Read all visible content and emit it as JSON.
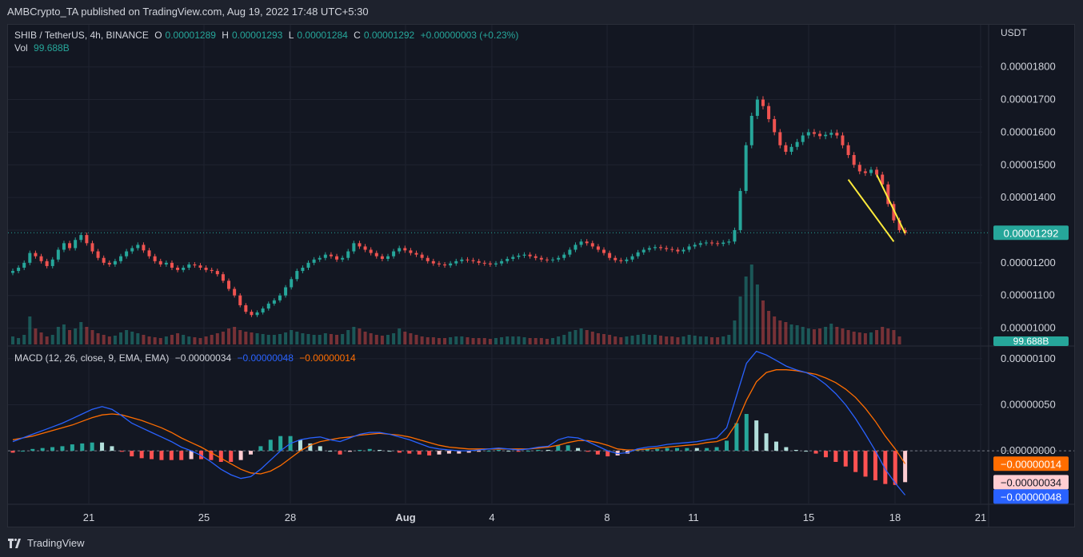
{
  "header": {
    "published_text": "AMBCrypto_TA published on TradingView.com, Aug 19, 2022 17:48 UTC+5:30"
  },
  "legend": {
    "symbol": "SHIB / TetherUS, 4h, BINANCE",
    "o_label": "O",
    "o_value": "0.00001289",
    "h_label": "H",
    "h_value": "0.00001293",
    "l_label": "L",
    "l_value": "0.00001284",
    "c_label": "C",
    "c_value": "0.00001292",
    "change": "+0.00000003 (+0.23%)",
    "vol_label": "Vol",
    "vol_value": "99.688B"
  },
  "macd_legend": {
    "title": "MACD (12, 26, close, 9, EMA, EMA)",
    "hist_value": "−0.00000034",
    "macd_value": "−0.00000048",
    "signal_value": "−0.00000014"
  },
  "brand": {
    "name": "TradingView"
  },
  "colors": {
    "up": "#26a69a",
    "down": "#ef5350",
    "macd_line": "#2962ff",
    "signal_line": "#ff6d00",
    "hist_pos_strong": "#26a69a",
    "hist_pos_weak": "#b2dfdb",
    "hist_neg_strong": "#ff5252",
    "hist_neg_weak": "#ffcdd2",
    "trend_lines": "#ffeb3b",
    "background": "#131722",
    "grid": "#1f2330"
  },
  "chart_data": [
    {
      "type": "candlestick",
      "title": "SHIB / TetherUS, 4h, BINANCE",
      "y_axis_unit": "USDT",
      "y_ticks": [
        "0.00001800",
        "0.00001700",
        "0.00001600",
        "0.00001500",
        "0.00001400",
        "0.00001300",
        "0.00001200",
        "0.00001100",
        "0.00001000"
      ],
      "x_ticks": [
        "21",
        "25",
        "28",
        "Aug",
        "4",
        "8",
        "11",
        "15",
        "18",
        "21"
      ],
      "last_price_label": "0.00001292",
      "volume_label": "99.688B",
      "ylim": [
        9.5e-06,
        1.88e-05
      ],
      "close_prices": [
        1.175e-05,
        1.185e-05,
        1.2e-05,
        1.23e-05,
        1.22e-05,
        1.205e-05,
        1.19e-05,
        1.21e-05,
        1.24e-05,
        1.26e-05,
        1.245e-05,
        1.27e-05,
        1.285e-05,
        1.26e-05,
        1.235e-05,
        1.215e-05,
        1.2e-05,
        1.195e-05,
        1.205e-05,
        1.22e-05,
        1.235e-05,
        1.245e-05,
        1.255e-05,
        1.238e-05,
        1.22e-05,
        1.205e-05,
        1.195e-05,
        1.2e-05,
        1.185e-05,
        1.178e-05,
        1.185e-05,
        1.195e-05,
        1.192e-05,
        1.185e-05,
        1.178e-05,
        1.175e-05,
        1.165e-05,
        1.145e-05,
        1.12e-05,
        1.1e-05,
        1.07e-05,
        1.05e-05,
        1.04e-05,
        1.048e-05,
        1.06e-05,
        1.075e-05,
        1.085e-05,
        1.1e-05,
        1.125e-05,
        1.15e-05,
        1.175e-05,
        1.185e-05,
        1.2e-05,
        1.21e-05,
        1.215e-05,
        1.225e-05,
        1.22e-05,
        1.21e-05,
        1.215e-05,
        1.235e-05,
        1.26e-05,
        1.25e-05,
        1.24e-05,
        1.23e-05,
        1.22e-05,
        1.212e-05,
        1.22e-05,
        1.235e-05,
        1.245e-05,
        1.238e-05,
        1.23e-05,
        1.225e-05,
        1.215e-05,
        1.205e-05,
        1.198e-05,
        1.195e-05,
        1.192e-05,
        1.198e-05,
        1.205e-05,
        1.21e-05,
        1.208e-05,
        1.205e-05,
        1.2e-05,
        1.198e-05,
        1.195e-05,
        1.198e-05,
        1.205e-05,
        1.212e-05,
        1.218e-05,
        1.222e-05,
        1.225e-05,
        1.22e-05,
        1.215e-05,
        1.21e-05,
        1.208e-05,
        1.21e-05,
        1.215e-05,
        1.225e-05,
        1.24e-05,
        1.255e-05,
        1.265e-05,
        1.26e-05,
        1.25e-05,
        1.24e-05,
        1.23e-05,
        1.215e-05,
        1.208e-05,
        1.205e-05,
        1.21e-05,
        1.22e-05,
        1.232e-05,
        1.24e-05,
        1.245e-05,
        1.248e-05,
        1.245e-05,
        1.242e-05,
        1.24e-05,
        1.235e-05,
        1.24e-05,
        1.25e-05,
        1.255e-05,
        1.26e-05,
        1.262e-05,
        1.26e-05,
        1.258e-05,
        1.262e-05,
        1.265e-05,
        1.3e-05,
        1.42e-05,
        1.56e-05,
        1.65e-05,
        1.7e-05,
        1.68e-05,
        1.64e-05,
        1.6e-05,
        1.56e-05,
        1.54e-05,
        1.555e-05,
        1.57e-05,
        1.59e-05,
        1.6e-05,
        1.595e-05,
        1.588e-05,
        1.592e-05,
        1.598e-05,
        1.59e-05,
        1.56e-05,
        1.53e-05,
        1.5e-05,
        1.48e-05,
        1.475e-05,
        1.485e-05,
        1.47e-05,
        1.44e-05,
        1.38e-05,
        1.33e-05,
        1.3e-05,
        1.292e-05
      ],
      "volume_relative": [
        0.1,
        0.08,
        0.12,
        0.35,
        0.2,
        0.15,
        0.1,
        0.12,
        0.22,
        0.25,
        0.18,
        0.2,
        0.28,
        0.22,
        0.18,
        0.14,
        0.12,
        0.1,
        0.11,
        0.15,
        0.18,
        0.16,
        0.14,
        0.12,
        0.1,
        0.09,
        0.08,
        0.1,
        0.12,
        0.14,
        0.12,
        0.1,
        0.09,
        0.08,
        0.1,
        0.12,
        0.14,
        0.16,
        0.2,
        0.22,
        0.18,
        0.16,
        0.15,
        0.14,
        0.13,
        0.12,
        0.12,
        0.13,
        0.15,
        0.18,
        0.16,
        0.14,
        0.13,
        0.12,
        0.12,
        0.14,
        0.13,
        0.12,
        0.13,
        0.18,
        0.22,
        0.2,
        0.16,
        0.14,
        0.12,
        0.11,
        0.12,
        0.14,
        0.2,
        0.16,
        0.14,
        0.12,
        0.1,
        0.09,
        0.09,
        0.08,
        0.08,
        0.09,
        0.1,
        0.1,
        0.09,
        0.08,
        0.08,
        0.08,
        0.07,
        0.08,
        0.09,
        0.1,
        0.1,
        0.1,
        0.09,
        0.08,
        0.08,
        0.08,
        0.07,
        0.08,
        0.1,
        0.12,
        0.16,
        0.18,
        0.2,
        0.18,
        0.16,
        0.14,
        0.13,
        0.12,
        0.1,
        0.09,
        0.1,
        0.11,
        0.12,
        0.13,
        0.12,
        0.12,
        0.11,
        0.1,
        0.1,
        0.09,
        0.1,
        0.12,
        0.11,
        0.1,
        0.1,
        0.09,
        0.09,
        0.1,
        0.12,
        0.3,
        0.6,
        0.85,
        1.0,
        0.75,
        0.55,
        0.42,
        0.35,
        0.3,
        0.28,
        0.25,
        0.24,
        0.22,
        0.2,
        0.19,
        0.2,
        0.22,
        0.26,
        0.22,
        0.2,
        0.18,
        0.16,
        0.15,
        0.14,
        0.15,
        0.18,
        0.22,
        0.2,
        0.18,
        0.1
      ]
    },
    {
      "type": "line",
      "title": "MACD (12, 26, close, 9, EMA, EMA)",
      "y_ticks": [
        "0.00000100",
        "0.00000050",
        "0.00000000"
      ],
      "ylim": [
        -5.8e-07,
        1.12e-06
      ],
      "value_labels": [
        "−0.00000014",
        "−0.00000034",
        "−0.00000048"
      ],
      "series": [
        {
          "values": [
            1e-07,
            1.4e-07,
            1.8e-07,
            2.2e-07,
            2.6e-07,
            3e-07,
            3.5e-07,
            4e-07,
            4.5e-07,
            4.8e-07,
            4.5e-07,
            3.8e-07,
            3e-07,
            2.5e-07,
            2e-07,
            1.5e-07,
            1e-07,
            4e-08,
            0.0,
            -5e-08,
            -1.2e-07,
            -2e-07,
            -2.6e-07,
            -3e-07,
            -2.8e-07,
            -2e-07,
            -1e-07,
            0.0,
            8e-08,
            1.2e-07,
            1.4e-07,
            1.5e-07,
            1.2e-07,
            1e-07,
            1.4e-07,
            1.8e-07,
            2e-07,
            2e-07,
            1.8e-07,
            1.5e-07,
            1.2e-07,
            8e-08,
            4e-08,
            2e-08,
            1e-08,
            0.0,
            0.0,
            1e-08,
            2e-08,
            3e-08,
            2e-08,
            1e-08,
            2e-08,
            4e-08,
            5e-08,
            1.2e-07,
            1.5e-07,
            1.4e-07,
            1e-07,
            5e-08,
            0.0,
            -3e-08,
            -2e-08,
            2e-08,
            4e-08,
            5e-08,
            7e-08,
            8e-08,
            9e-08,
            1e-07,
            1.2e-07,
            1.4e-07,
            2.5e-07,
            6e-07,
            9.5e-07,
            1.08e-06,
            1.04e-06,
            9.8e-07,
            9.2e-07,
            8.8e-07,
            8.5e-07,
            8e-07,
            7.2e-07,
            6.2e-07,
            5e-07,
            3.5e-07,
            1.8e-07,
            0.0,
            -2e-07,
            -3.5e-07,
            -4.8e-07
          ]
        },
        {
          "values": [
            1.2e-07,
            1.4e-07,
            1.6e-07,
            1.9e-07,
            2.2e-07,
            2.5e-07,
            2.8e-07,
            3.2e-07,
            3.6e-07,
            3.9e-07,
            4e-07,
            3.9e-07,
            3.6e-07,
            3.3e-07,
            2.9e-07,
            2.5e-07,
            2e-07,
            1.4e-07,
            9e-08,
            4e-08,
            -2e-08,
            -8e-08,
            -1.4e-07,
            -2e-07,
            -2.4e-07,
            -2.5e-07,
            -2.2e-07,
            -1.6e-07,
            -8e-08,
            0.0,
            6e-08,
            1e-07,
            1.2e-07,
            1.4e-07,
            1.5e-07,
            1.7e-07,
            1.8e-07,
            1.9e-07,
            1.8e-07,
            1.7e-07,
            1.5e-07,
            1.2e-07,
            9e-08,
            6e-08,
            4e-08,
            3e-08,
            2e-08,
            2e-08,
            2e-08,
            2e-08,
            2e-08,
            2e-08,
            2e-08,
            3e-08,
            4e-08,
            6e-08,
            9e-08,
            1.1e-07,
            1.1e-07,
            9e-08,
            6e-08,
            2e-08,
            1e-08,
            1e-08,
            2e-08,
            3e-08,
            4e-08,
            5e-08,
            6e-08,
            7e-08,
            9e-08,
            1e-07,
            1.4e-07,
            3e-07,
            5.5e-07,
            7.5e-07,
            8.5e-07,
            8.8e-07,
            8.8e-07,
            8.7e-07,
            8.5e-07,
            8.3e-07,
            7.9e-07,
            7.4e-07,
            6.7e-07,
            5.8e-07,
            4.6e-07,
            3.2e-07,
            1.6e-07,
            2e-08,
            -1.4e-07
          ]
        }
      ]
    }
  ]
}
